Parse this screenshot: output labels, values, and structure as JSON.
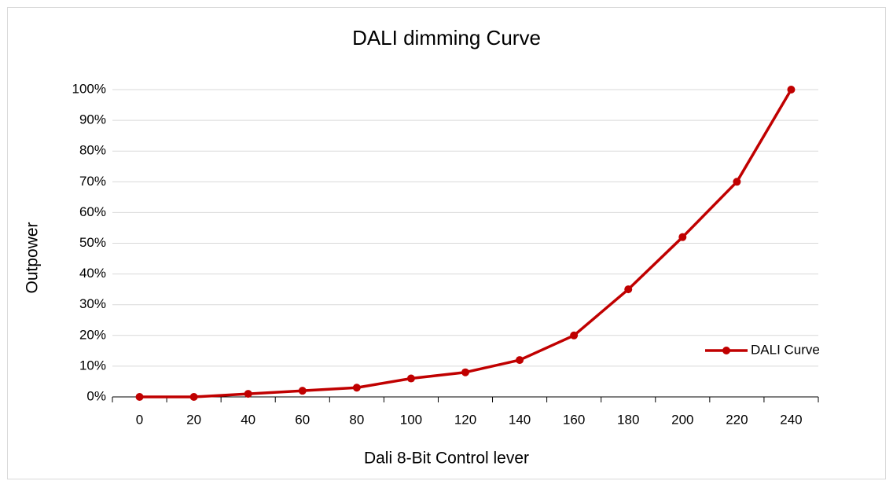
{
  "chart_data": {
    "type": "line",
    "title": "DALI dimming Curve",
    "x_label": "Dali 8-Bit Control lever",
    "y_label": "Outpower",
    "categories": [
      "0",
      "20",
      "40",
      "60",
      "80",
      "100",
      "120",
      "140",
      "160",
      "180",
      "200",
      "220",
      "240"
    ],
    "series": [
      {
        "name": "DALI Curve",
        "color": "#c00000",
        "values": [
          0,
          0,
          1,
          2,
          3,
          6,
          8,
          12,
          20,
          35,
          52,
          70,
          100
        ]
      }
    ],
    "ylim": [
      0,
      100
    ],
    "yticks": [
      {
        "value": 0,
        "label": "0%"
      },
      {
        "value": 10,
        "label": "10%"
      },
      {
        "value": 20,
        "label": "20%"
      },
      {
        "value": 30,
        "label": "30%"
      },
      {
        "value": 40,
        "label": "40%"
      },
      {
        "value": 50,
        "label": "50%"
      },
      {
        "value": 60,
        "label": "60%"
      },
      {
        "value": 70,
        "label": "70%"
      },
      {
        "value": 80,
        "label": "80%"
      },
      {
        "value": 90,
        "label": "90%"
      },
      {
        "value": 100,
        "label": "100%"
      }
    ],
    "grid": true,
    "legend": "right"
  }
}
